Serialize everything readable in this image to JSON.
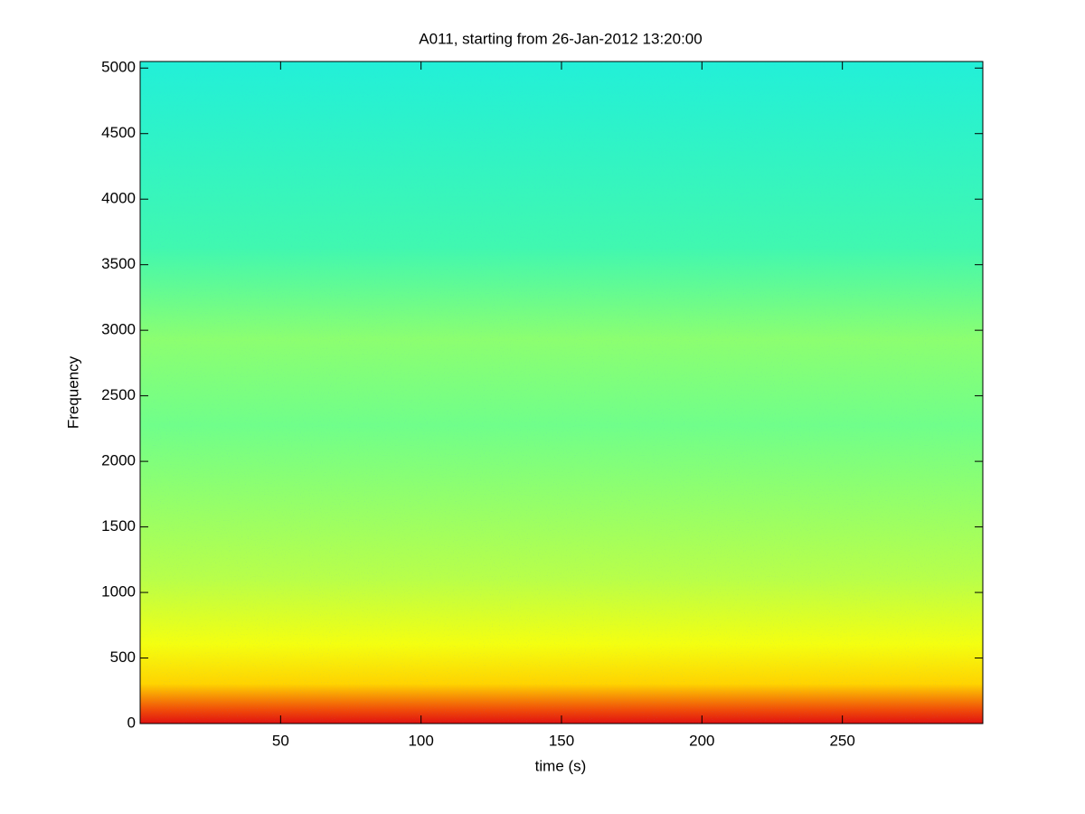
{
  "chart_data": {
    "type": "spectrogram",
    "title": "A011, starting from 26-Jan-2012 13:20:00",
    "xlabel": "time (s)",
    "ylabel": "Frequency",
    "xlim": [
      0,
      300
    ],
    "ylim": [
      0,
      5050
    ],
    "xticks": [
      50,
      100,
      150,
      200,
      250
    ],
    "yticks": [
      0,
      500,
      1000,
      1500,
      2000,
      2500,
      3000,
      3500,
      4000,
      4500,
      5000
    ]
  }
}
